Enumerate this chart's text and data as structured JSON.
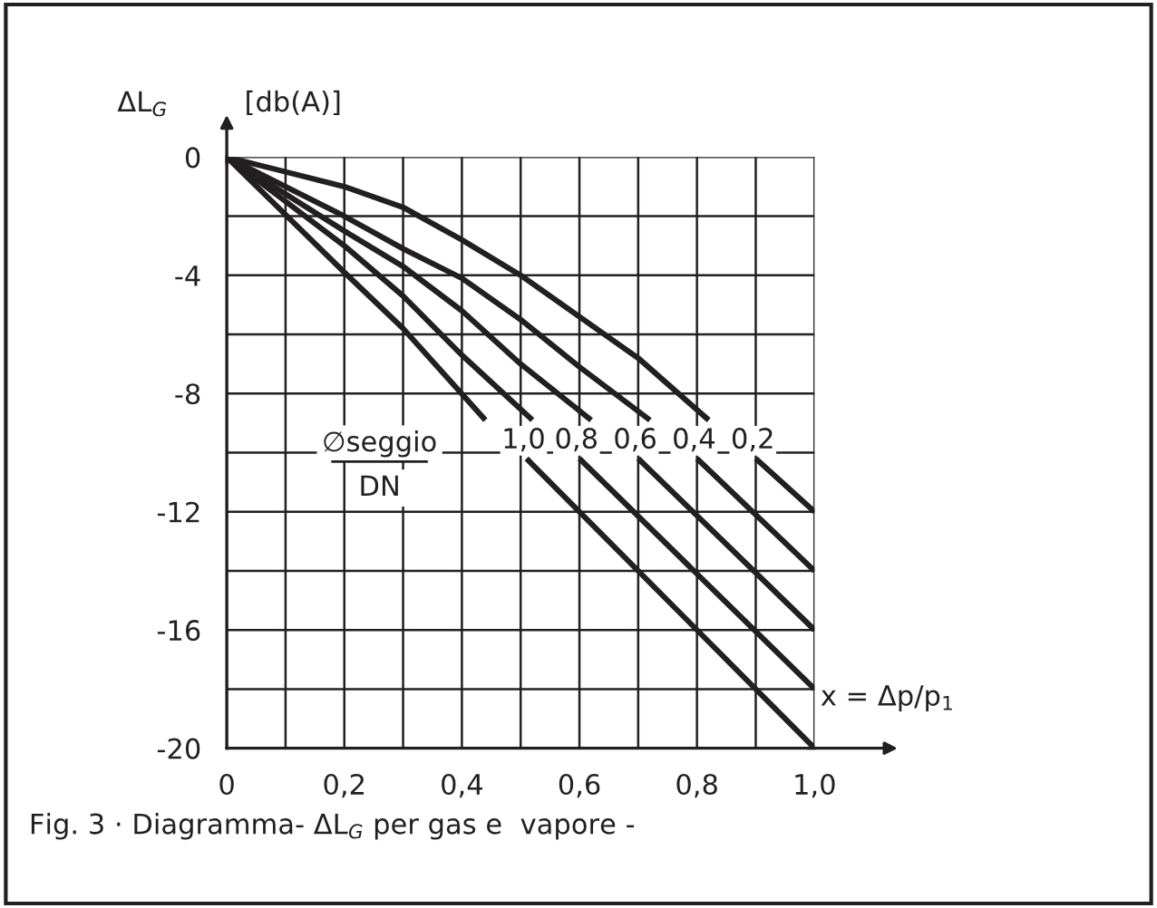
{
  "chart_data": {
    "type": "line",
    "xlabel": "x = Δp/p$_{1}$",
    "ylabel": "ΔL$_{G}$",
    "annotations": [
      "[db(A)]",
      "∅seggio",
      "DN",
      "Fig. 3 · Diagramma- ΔL$_{G}$ per gas e  vapore -"
    ],
    "xlim": [
      0,
      1.0
    ],
    "ylim": [
      -20,
      0
    ],
    "xticks": [
      0,
      {
        "value": 0.1,
        "label": null
      },
      {
        "value": 0.2,
        "label": "0,2"
      },
      {
        "value": 0.3,
        "label": null
      },
      {
        "value": 0.4,
        "label": "0,4"
      },
      {
        "value": 0.5,
        "label": null
      },
      {
        "value": 0.6,
        "label": "0,6"
      },
      {
        "value": 0.7,
        "label": null
      },
      {
        "value": 0.8,
        "label": "0,8"
      },
      {
        "value": 0.9,
        "label": null
      },
      {
        "value": 1.0,
        "label": "1,0"
      }
    ],
    "yticks": [
      0,
      {
        "value": -2,
        "label": null
      },
      -4,
      {
        "value": -6,
        "label": null
      },
      -8,
      {
        "value": -10,
        "label": null
      },
      -12,
      {
        "value": -14,
        "label": null
      },
      -16,
      {
        "value": -18,
        "label": null
      },
      -20
    ],
    "grid": true,
    "marker": "none",
    "line_style": "solid",
    "series": [
      {
        "name": "1,0",
        "color": "#231f20",
        "x": [
          0,
          0.2,
          0.3,
          0.44,
          null,
          0.51,
          1.0
        ],
        "values": [
          0,
          -3.9,
          -5.8,
          -8.9,
          null,
          -10.2,
          -20
        ]
      },
      {
        "name": "0,8",
        "color": "#231f20",
        "x": [
          0,
          0.2,
          0.3,
          0.4,
          0.52,
          null,
          0.6,
          1.0
        ],
        "values": [
          0,
          -3.0,
          -4.7,
          -6.7,
          -8.9,
          null,
          -10.2,
          -18
        ]
      },
      {
        "name": "0,6",
        "color": "#231f20",
        "x": [
          0,
          0.2,
          0.3,
          0.4,
          0.5,
          0.62,
          null,
          0.7,
          1.0
        ],
        "values": [
          0,
          -2.5,
          -3.7,
          -5.2,
          -7.0,
          -8.9,
          null,
          -10.2,
          -16
        ]
      },
      {
        "name": "0,4",
        "color": "#231f20",
        "x": [
          0,
          0.2,
          0.3,
          0.4,
          0.5,
          0.6,
          0.72,
          null,
          0.8,
          1.0
        ],
        "values": [
          0,
          -2.0,
          -3.1,
          -4.1,
          -5.5,
          -7.1,
          -8.9,
          null,
          -10.2,
          -14
        ]
      },
      {
        "name": "0,2",
        "color": "#231f20",
        "x": [
          0,
          0.1,
          0.2,
          0.3,
          0.4,
          0.5,
          0.6,
          0.7,
          0.82,
          null,
          0.9,
          1.0
        ],
        "values": [
          0,
          -0.5,
          -1.0,
          -1.7,
          -2.8,
          -4.0,
          -5.4,
          -6.8,
          -8.9,
          null,
          -10.2,
          -12
        ]
      }
    ]
  }
}
